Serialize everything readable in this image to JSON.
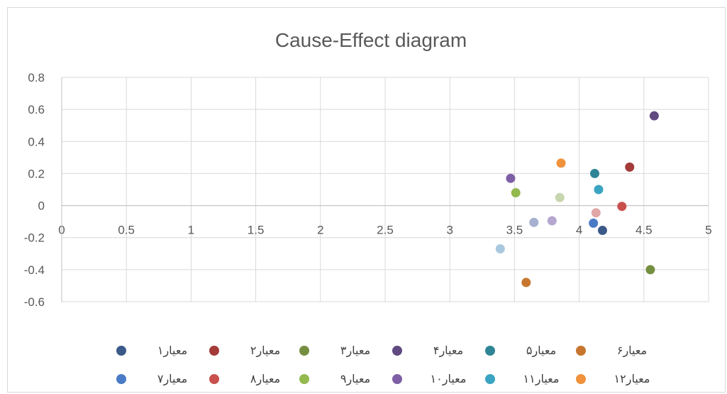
{
  "chart_data": {
    "type": "scatter",
    "title": "Cause-Effect diagram",
    "xlim": [
      0,
      5
    ],
    "ylim": [
      -0.6,
      0.8
    ],
    "x_ticks": [
      0,
      0.5,
      1,
      1.5,
      2,
      2.5,
      3,
      3.5,
      4,
      4.5,
      5
    ],
    "y_ticks": [
      -0.6,
      -0.4,
      -0.2,
      0,
      0.2,
      0.4,
      0.6,
      0.8
    ],
    "x_tick_labels": [
      "0",
      "0.5",
      "1",
      "1.5",
      "2",
      "2.5",
      "3",
      "3.5",
      "4",
      "4.5",
      "5"
    ],
    "y_tick_labels": [
      "-0.6",
      "-0.4",
      "-0.2",
      "0",
      "0.2",
      "0.4",
      "0.6",
      "0.8"
    ],
    "grid": true,
    "legend_position": "bottom",
    "series": [
      {
        "name": "معیار۱",
        "color": "#3b5a8a",
        "x": 4.18,
        "y": -0.155
      },
      {
        "name": "معیار۲",
        "color": "#a33b38",
        "x": 4.39,
        "y": 0.24
      },
      {
        "name": "معیار۳",
        "color": "#758f40",
        "x": 4.55,
        "y": -0.4
      },
      {
        "name": "معیار۴",
        "color": "#604a80",
        "x": 4.58,
        "y": 0.56
      },
      {
        "name": "معیار۵",
        "color": "#2f8596",
        "x": 4.12,
        "y": 0.2
      },
      {
        "name": "معیار۶",
        "color": "#c7762f",
        "x": 3.59,
        "y": -0.48
      },
      {
        "name": "معیار۷",
        "color": "#4a7bc6",
        "x": 4.11,
        "y": -0.11
      },
      {
        "name": "معیار۸",
        "color": "#c9504d",
        "x": 4.33,
        "y": -0.005
      },
      {
        "name": "معیار۹",
        "color": "#94b94f",
        "x": 3.51,
        "y": 0.08
      },
      {
        "name": "معیار۱۰",
        "color": "#7e5fa6",
        "x": 3.47,
        "y": 0.17
      },
      {
        "name": "معیار۱۱",
        "color": "#3aa4c2",
        "x": 4.15,
        "y": 0.1
      },
      {
        "name": "معیار۱۲",
        "color": "#f0913b",
        "x": 3.86,
        "y": 0.265
      },
      {
        "name": "",
        "color": "#a9c8de",
        "x": 3.39,
        "y": -0.27
      },
      {
        "name": "",
        "color": "#a6b0cf",
        "x": 3.65,
        "y": -0.105
      },
      {
        "name": "",
        "color": "#b5a7cf",
        "x": 3.79,
        "y": -0.095
      },
      {
        "name": "",
        "color": "#dfa7a5",
        "x": 4.13,
        "y": -0.045
      },
      {
        "name": "",
        "color": "#c7d6ae",
        "x": 3.85,
        "y": 0.05
      }
    ],
    "legend": [
      {
        "label": "معیار۱",
        "color": "#3b5a8a"
      },
      {
        "label": "معیار۲",
        "color": "#a33b38"
      },
      {
        "label": "معیار۳",
        "color": "#758f40"
      },
      {
        "label": "معیار۴",
        "color": "#604a80"
      },
      {
        "label": "معیار۵",
        "color": "#2f8596"
      },
      {
        "label": "معیار۶",
        "color": "#c7762f"
      },
      {
        "label": "معیار۷",
        "color": "#4a7bc6"
      },
      {
        "label": "معیار۸",
        "color": "#c9504d"
      },
      {
        "label": "معیار۹",
        "color": "#94b94f"
      },
      {
        "label": "معیار۱۰",
        "color": "#7e5fa6"
      },
      {
        "label": "معیار۱۱",
        "color": "#3aa4c2"
      },
      {
        "label": "معیار۱۲",
        "color": "#f0913b"
      }
    ]
  }
}
